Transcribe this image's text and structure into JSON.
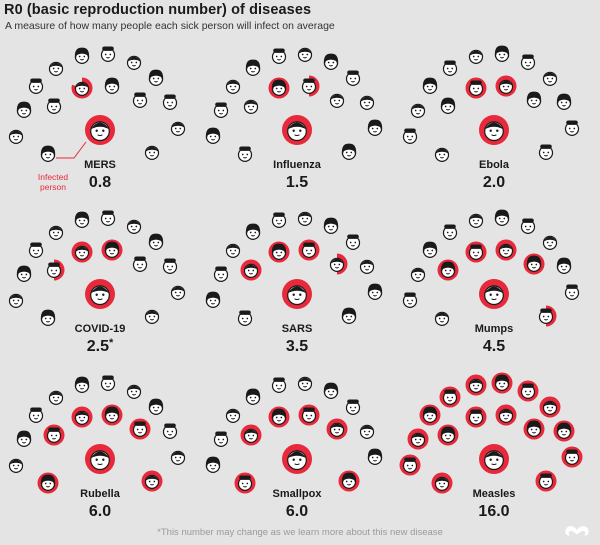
{
  "page": {
    "title": "R0 (basic reproduction number) of diseases",
    "subtitle": "A measure of how many people each sick person will infect on average",
    "footnote": "*This number may change as we learn more about this new disease",
    "infected_label_line1": "Infected",
    "infected_label_line2": "person"
  },
  "colors": {
    "background": "#e4e4e4",
    "infected": "#e8293b",
    "face_ring": "#ffffff",
    "hair": "#1a1a1a",
    "label_accent": "#e8293b"
  },
  "chart_data": {
    "type": "pictogram",
    "title": "R0 (basic reproduction number) of diseases",
    "subtitle": "A measure of how many people each sick person will infect on average",
    "people_per_panel": 16,
    "panels": [
      {
        "disease": "MERS",
        "r0": 0.8,
        "r0_label": "0.8",
        "footnote_marker": ""
      },
      {
        "disease": "Influenza",
        "r0": 1.5,
        "r0_label": "1.5",
        "footnote_marker": ""
      },
      {
        "disease": "Ebola",
        "r0": 2.0,
        "r0_label": "2.0",
        "footnote_marker": ""
      },
      {
        "disease": "COVID-19",
        "r0": 2.5,
        "r0_label": "2.5",
        "footnote_marker": "*"
      },
      {
        "disease": "SARS",
        "r0": 3.5,
        "r0_label": "3.5",
        "footnote_marker": ""
      },
      {
        "disease": "Mumps",
        "r0": 4.5,
        "r0_label": "4.5",
        "footnote_marker": ""
      },
      {
        "disease": "Rubella",
        "r0": 6.0,
        "r0_label": "6.0",
        "footnote_marker": ""
      },
      {
        "disease": "Smallpox",
        "r0": 6.0,
        "r0_label": "6.0",
        "footnote_marker": ""
      },
      {
        "disease": "Measles",
        "r0": 16.0,
        "r0_label": "16.0",
        "footnote_marker": ""
      }
    ]
  }
}
